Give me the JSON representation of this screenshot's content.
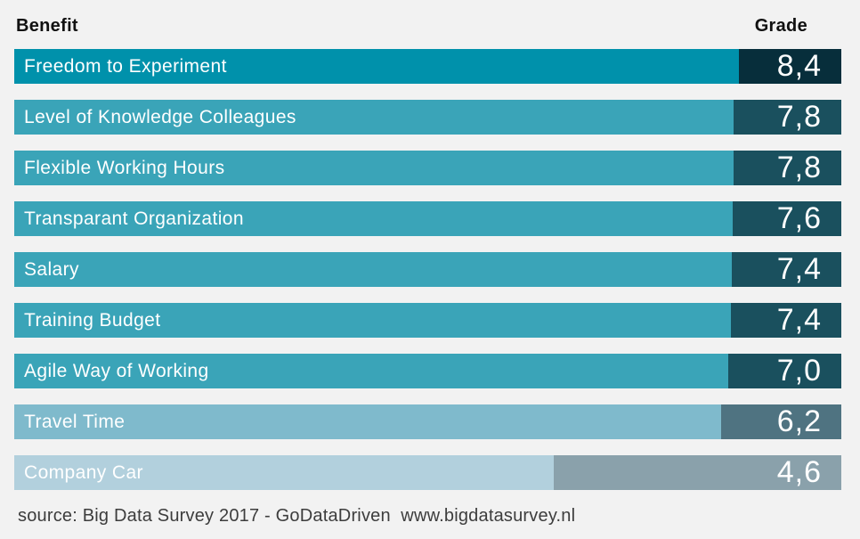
{
  "header": {
    "benefit_label": "Benefit",
    "grade_label": "Grade"
  },
  "footer": {
    "source_text": "source: Big Data Survey 2017 - GoDataDriven  www.bigdatasurvey.nl"
  },
  "colors": {
    "background": "#f2f2f2",
    "header_text": "#111111",
    "footer_text": "#3d3d3d",
    "label_text": "#ffffff"
  },
  "chart_data": {
    "type": "bar",
    "orientation": "horizontal",
    "title": "",
    "columns": [
      "Benefit",
      "Grade"
    ],
    "categories": [
      "Freedom to Experiment",
      "Level of Knowledge Colleagues",
      "Flexible Working Hours",
      "Transparant Organization",
      "Salary",
      "Training Budget",
      "Agile Way of Working",
      "Travel Time",
      "Company Car"
    ],
    "values": [
      8.4,
      7.8,
      7.8,
      7.6,
      7.4,
      7.4,
      7.0,
      6.2,
      4.6
    ],
    "value_labels": [
      "8,4",
      "7,8",
      "7,8",
      "7,6",
      "7,4",
      "7,4",
      "7,0",
      "6,2",
      "4,6"
    ],
    "source": "Big Data Survey 2017 - GoDataDriven www.bigdatasurvey.nl",
    "layout_hints": {
      "legend": "none",
      "grid": false,
      "value_box_alignment": "right",
      "bar_fractions": [
        0.876,
        0.87,
        0.87,
        0.869,
        0.868,
        0.866,
        0.863,
        0.855,
        0.652
      ],
      "bar_colors": [
        "#0091ab",
        "#3aa4b8",
        "#3aa4b8",
        "#3aa4b8",
        "#3aa4b8",
        "#3aa4b8",
        "#3aa4b8",
        "#7fbacc",
        "#b2d0dd"
      ],
      "box_colors": [
        "#072e3b",
        "#1a505e",
        "#1a505e",
        "#1a505e",
        "#1a505e",
        "#1a505e",
        "#1a505e",
        "#4f7381",
        "#8aa1ab"
      ]
    }
  }
}
